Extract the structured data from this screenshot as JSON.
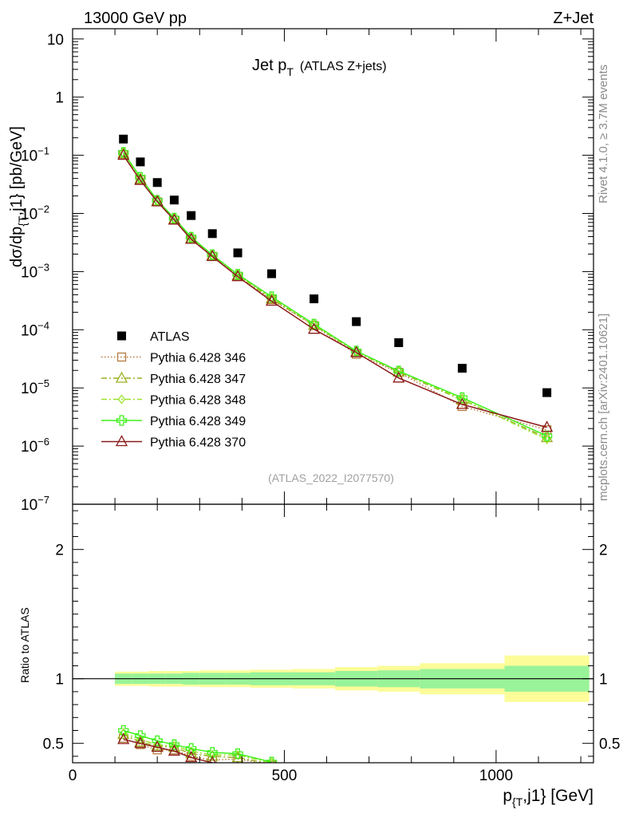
{
  "header": {
    "left": "13000 GeV pp",
    "right": "Z+Jet"
  },
  "side_labels": {
    "rivet": "Rivet 4.1.0, ≥ 3.7M events",
    "mcplots": "mcplots.cern.ch [arXiv:2401.10621]"
  },
  "chart_data": [
    {
      "type": "scatter",
      "panel": "main",
      "title": "Jet p",
      "title_sub": "T",
      "title_suffix": "(ATLAS Z+jets)",
      "analysis_tag": "(ATLAS_2022_I2077570)",
      "ylabel": "dσ/dp_{T},j1} [pb/GeV]",
      "ylabel_parts": {
        "a": "dσ/dp",
        "sub": "{T",
        "b": ",j1} [pb/GeV]"
      },
      "yscale": "log",
      "ylim": [
        1e-07,
        15
      ],
      "xlim": [
        0,
        1230
      ],
      "yticks": [
        {
          "v": 10,
          "m": "10",
          "e": ""
        },
        {
          "v": 1,
          "m": "1",
          "e": ""
        },
        {
          "v": 0.1,
          "m": "10",
          "e": "−1"
        },
        {
          "v": 0.01,
          "m": "10",
          "e": "−2"
        },
        {
          "v": 0.001,
          "m": "10",
          "e": "−3"
        },
        {
          "v": 0.0001,
          "m": "10",
          "e": "−4"
        },
        {
          "v": 1e-05,
          "m": "10",
          "e": "−5"
        },
        {
          "v": 1e-06,
          "m": "10",
          "e": "−6"
        },
        {
          "v": 1e-07,
          "m": "10",
          "e": "−7"
        }
      ],
      "legend_position": "bottom-left",
      "x": [
        120,
        160,
        200,
        240,
        280,
        330,
        390,
        470,
        570,
        670,
        770,
        920,
        1120
      ],
      "series": [
        {
          "name": "ATLAS",
          "color": "#000000",
          "marker": "square",
          "line": "none",
          "values": [
            0.19,
            0.077,
            0.034,
            0.017,
            0.0092,
            0.0045,
            0.0021,
            0.00092,
            0.00034,
            0.000138,
            6e-05,
            2.18e-05,
            8.3e-06
          ]
        },
        {
          "name": "Pythia 6.428 346",
          "color": "#b57a3e",
          "marker": "open-square",
          "line": "dotted",
          "values": [
            0.103,
            0.038,
            0.0158,
            0.0077,
            0.0036,
            0.00183,
            0.00083,
            0.00033,
            0.000118,
            3.8e-05,
            1.85e-05,
            4.8e-06,
            1.9e-06
          ]
        },
        {
          "name": "Pythia 6.428 347",
          "color": "#9aaf1e",
          "marker": "open-triangle",
          "line": "dashdot",
          "values": [
            0.108,
            0.039,
            0.0163,
            0.0079,
            0.0037,
            0.00188,
            0.00086,
            0.00034,
            0.000119,
            4.15e-05,
            1.88e-05,
            6.2e-06,
            1.4e-06
          ]
        },
        {
          "name": "Pythia 6.428 348",
          "color": "#9be22d",
          "marker": "open-diamond",
          "line": "dashdot",
          "values": [
            0.107,
            0.039,
            0.0164,
            0.008,
            0.0038,
            0.0019,
            0.00088,
            0.00036,
            0.000122,
            4.2e-05,
            1.95e-05,
            6.4e-06,
            1.3e-06
          ]
        },
        {
          "name": "Pythia 6.428 349",
          "color": "#3ef01a",
          "marker": "open-cross",
          "line": "solid",
          "values": [
            0.112,
            0.042,
            0.0168,
            0.0083,
            0.0039,
            0.00195,
            0.0009,
            0.00037,
            0.000125,
            4.3e-05,
            1.95e-05,
            6.8e-06,
            1.5e-06
          ]
        },
        {
          "name": "Pythia 6.428 370",
          "color": "#8b1a1a",
          "marker": "open-triangle",
          "line": "solid",
          "values": [
            0.1,
            0.037,
            0.0159,
            0.0077,
            0.0036,
            0.00182,
            0.00082,
            0.00031,
            0.000102,
            4.05e-05,
            1.48e-05,
            5.2e-06,
            2.1e-06
          ]
        }
      ]
    },
    {
      "type": "line",
      "panel": "ratio",
      "ylabel": "Ratio to ATLAS",
      "xlabel": "p_{T},j1} [GeV]",
      "xlabel_parts": {
        "a": "p",
        "sub": "{T",
        "b": ",j1} [GeV]"
      },
      "ylim": [
        0.35,
        2.35
      ],
      "xlim": [
        0,
        1230
      ],
      "yticks": [
        0.5,
        1,
        2
      ],
      "xticks": [
        0,
        500,
        1000
      ],
      "reference_line": 1,
      "bands": {
        "edges": [
          100,
          140,
          180,
          220,
          260,
          300,
          360,
          420,
          520,
          620,
          720,
          820,
          1020,
          1220
        ],
        "inner_half_width": [
          0.04,
          0.04,
          0.04,
          0.04,
          0.045,
          0.045,
          0.045,
          0.05,
          0.05,
          0.06,
          0.065,
          0.075,
          0.1
        ],
        "outer_half_width": [
          0.055,
          0.055,
          0.06,
          0.06,
          0.06,
          0.065,
          0.065,
          0.07,
          0.075,
          0.09,
          0.1,
          0.12,
          0.18
        ],
        "inner_color": "#99f399",
        "outer_color": "#fcfc99"
      },
      "series": [
        {
          "name": "Pythia 6.428 346",
          "color": "#b57a3e",
          "marker": "open-square",
          "line": "dotted",
          "x": [
            120,
            160,
            200,
            240,
            280,
            330,
            390,
            470
          ],
          "values": [
            0.54,
            0.49,
            0.45,
            0.45,
            0.4,
            0.37,
            0.38,
            0.33
          ]
        },
        {
          "name": "Pythia 6.428 347",
          "color": "#9aaf1e",
          "marker": "open-triangle",
          "line": "dashdot",
          "x": [
            120,
            160,
            200,
            240,
            280,
            330,
            390,
            470
          ],
          "values": [
            0.57,
            0.51,
            0.48,
            0.47,
            0.42,
            0.4,
            0.39,
            0.34
          ]
        },
        {
          "name": "Pythia 6.428 348",
          "color": "#9be22d",
          "marker": "open-diamond",
          "line": "dashdot",
          "x": [
            120,
            160,
            200,
            240,
            280,
            330,
            390,
            470
          ],
          "values": [
            0.58,
            0.53,
            0.49,
            0.48,
            0.44,
            0.41,
            0.41,
            0.35
          ]
        },
        {
          "name": "Pythia 6.428 349",
          "color": "#3ef01a",
          "marker": "open-cross",
          "line": "solid",
          "x": [
            120,
            160,
            200,
            240,
            280,
            330,
            390,
            470
          ],
          "values": [
            0.6,
            0.56,
            0.52,
            0.49,
            0.46,
            0.43,
            0.42,
            0.355
          ]
        },
        {
          "name": "Pythia 6.428 370",
          "color": "#8b1a1a",
          "marker": "open-triangle",
          "line": "solid",
          "x": [
            120,
            160,
            200,
            240,
            280,
            330,
            390,
            470
          ],
          "values": [
            0.53,
            0.5,
            0.47,
            0.44,
            0.39,
            0.35,
            0.31,
            0.3
          ]
        }
      ]
    }
  ]
}
